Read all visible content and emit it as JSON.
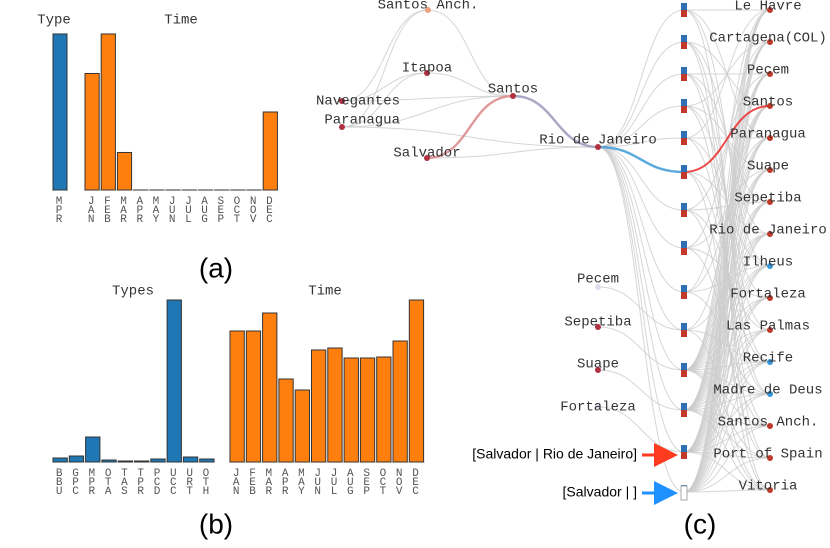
{
  "chart_data": [
    {
      "type": "bar",
      "title": "Type",
      "categories": [
        "MPR"
      ],
      "values": [
        158
      ],
      "color": "#1f77b4",
      "ylim": [
        0,
        160
      ]
    },
    {
      "type": "bar",
      "title": "Time",
      "categories": [
        "JAN",
        "FEB",
        "MAR",
        "APR",
        "MAY",
        "JUN",
        "JUL",
        "AUG",
        "SEP",
        "OCT",
        "NOV",
        "DEC"
      ],
      "values": [
        118,
        158,
        38,
        0,
        0,
        0,
        0,
        0,
        0,
        0,
        0,
        79
      ],
      "color": "#ff7f0e",
      "ylim": [
        0,
        160
      ]
    },
    {
      "type": "bar",
      "title": "Types",
      "categories": [
        "BBU",
        "GPC",
        "MPR",
        "OTA",
        "TAS",
        "TPR",
        "PCD",
        "UCC",
        "URT",
        "OTH"
      ],
      "values": [
        4,
        6,
        25,
        2,
        1,
        1,
        3,
        162,
        5,
        3
      ],
      "color": "#1f77b4",
      "ylim": [
        0,
        162
      ]
    },
    {
      "type": "bar",
      "title": "Time",
      "categories": [
        "JAN",
        "FEB",
        "MAR",
        "APR",
        "MAY",
        "JUN",
        "JUL",
        "AUG",
        "SEP",
        "OCT",
        "NOV",
        "DEC"
      ],
      "values": [
        131,
        131,
        149,
        83,
        72,
        112,
        114,
        104,
        104,
        105,
        121,
        162
      ],
      "color": "#ff7f0e",
      "ylim": [
        0,
        162
      ]
    }
  ],
  "panel_labels": [
    "(a)",
    "(b)",
    "(c)"
  ],
  "diagram": {
    "origin_nodes": [
      "Santos Anch.",
      "Itapoa",
      "Navegantes",
      "Paranagua",
      "Santos",
      "Salvador",
      "Rio de Janeiro",
      "Pecem",
      "Sepetiba",
      "Suape",
      "Fortaleza"
    ],
    "port_nodes": [
      "Le Havre",
      "Cartagena(COL)",
      "Pecem",
      "Santos",
      "Paranagua",
      "Suape",
      "Sepetiba",
      "Rio de Janeiro",
      "Ilheus",
      "Fortaleza",
      "Las Palmas",
      "Recife",
      "Madre de Deus",
      "Santos Anch.",
      "Port of Spain",
      "Vitoria"
    ],
    "annotations": [
      "[Salvador | Rio de Janeiro]",
      "[Salvador | ]"
    ]
  }
}
